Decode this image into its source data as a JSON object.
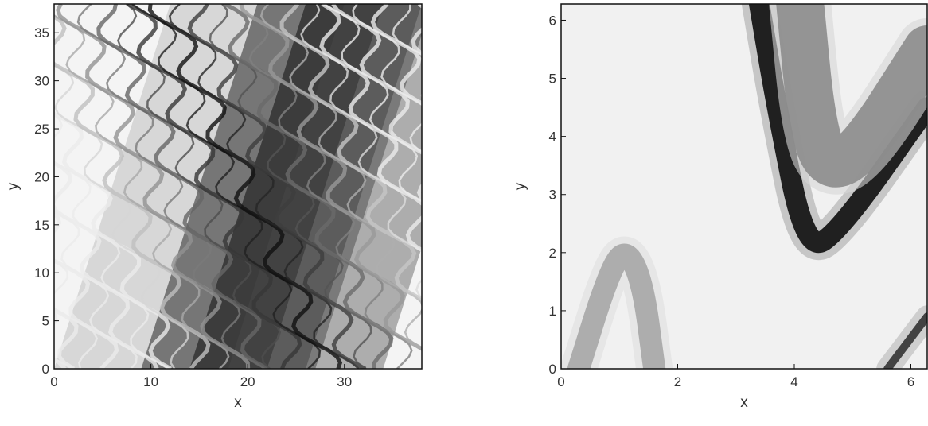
{
  "chart_data": [
    {
      "type": "heatmap",
      "title": "",
      "xlabel": "x",
      "ylabel": "y",
      "xlim": [
        0,
        38
      ],
      "ylim": [
        0,
        38
      ],
      "xticks": [
        0,
        10,
        20,
        30
      ],
      "yticks": [
        0,
        5,
        10,
        15,
        20,
        25,
        30,
        35
      ],
      "colormap": "grayscale",
      "grid": false,
      "bands": [
        {
          "x0": 0,
          "x1": 18,
          "y0": 0,
          "y1": 38,
          "intensity": 0.25
        },
        {
          "x0": 9,
          "x1": 27,
          "y0": 0,
          "y1": 38,
          "intensity": 0.85
        },
        {
          "x0": 14,
          "x1": 26,
          "y0": 0,
          "y1": 38,
          "intensity": 0.95
        },
        {
          "x0": 22,
          "x1": 34,
          "y0": 0,
          "y1": 38,
          "intensity": 0.55
        }
      ]
    },
    {
      "type": "heatmap",
      "title": "",
      "xlabel": "x",
      "ylabel": "y",
      "xlim": [
        0,
        6.28
      ],
      "ylim": [
        0,
        6.28
      ],
      "xticks": [
        0,
        2,
        4,
        6
      ],
      "yticks": [
        0,
        1,
        2,
        3,
        4,
        5,
        6
      ],
      "colormap": "grayscale",
      "grid": false,
      "curves": [
        {
          "name": "dark-arch",
          "points": [
            [
              3.4,
              6.28
            ],
            [
              3.7,
              4.5
            ],
            [
              4.2,
              2.0
            ],
            [
              4.8,
              2.4
            ],
            [
              6.28,
              4.5
            ]
          ],
          "intensity": 0.95
        },
        {
          "name": "inner-lobe",
          "points": [
            [
              4.1,
              6.28
            ],
            [
              4.3,
              4.2
            ],
            [
              4.6,
              3.4
            ],
            [
              5.2,
              3.8
            ],
            [
              6.28,
              5.5
            ]
          ],
          "intensity": 0.45
        },
        {
          "name": "left-arch",
          "points": [
            [
              0.3,
              0.0
            ],
            [
              0.8,
              1.6
            ],
            [
              1.1,
              2.1
            ],
            [
              1.4,
              1.5
            ],
            [
              1.6,
              0.0
            ]
          ],
          "intensity": 0.35
        },
        {
          "name": "corner-stripe",
          "points": [
            [
              5.6,
              0.0
            ],
            [
              6.28,
              0.9
            ]
          ],
          "intensity": 0.8
        }
      ]
    }
  ]
}
